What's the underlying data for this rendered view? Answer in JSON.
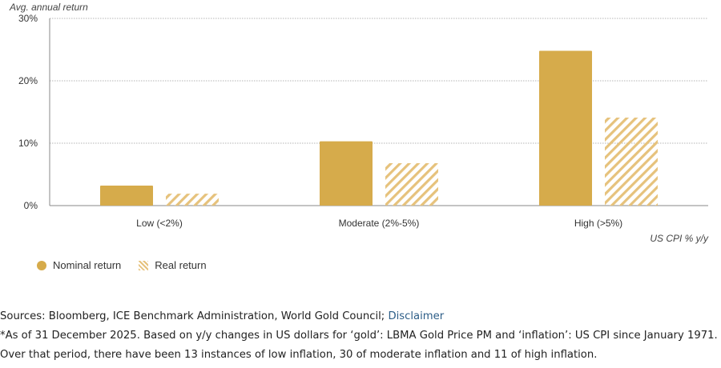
{
  "chart_data": {
    "type": "bar",
    "ylabel": "Avg. annual return",
    "xlabel": "US CPI % y/y",
    "ylim": [
      0,
      30
    ],
    "yticks": [
      0,
      10,
      20,
      30
    ],
    "ytick_labels": [
      "0%",
      "10%",
      "20%",
      "30%"
    ],
    "categories": [
      "Low (<2%)",
      "Moderate (2%-5%)",
      "High (>5%)"
    ],
    "series": [
      {
        "name": "Nominal return",
        "values": [
          3.2,
          10.3,
          24.8
        ],
        "color": "#d6ab4b",
        "style": "solid"
      },
      {
        "name": "Real return",
        "values": [
          1.9,
          6.8,
          14.1
        ],
        "color": "#e6c27c",
        "style": "hatched"
      }
    ],
    "grid": true,
    "legend_position": "bottom-left"
  },
  "notes": {
    "sources_label": "Sources: Bloomberg, ICE Benchmark Administration, World Gold Council; ",
    "disclaimer_link": "Disclaimer",
    "footnote_line1": "*As of 31 December 2025. Based on y/y changes in US dollars for ‘gold’: LBMA Gold Price PM and ‘inflation’: US CPI since January 1971.",
    "footnote_line2": "Over that period, there have been 13 instances of low inflation, 30 of moderate inflation and 11 of high inflation."
  }
}
